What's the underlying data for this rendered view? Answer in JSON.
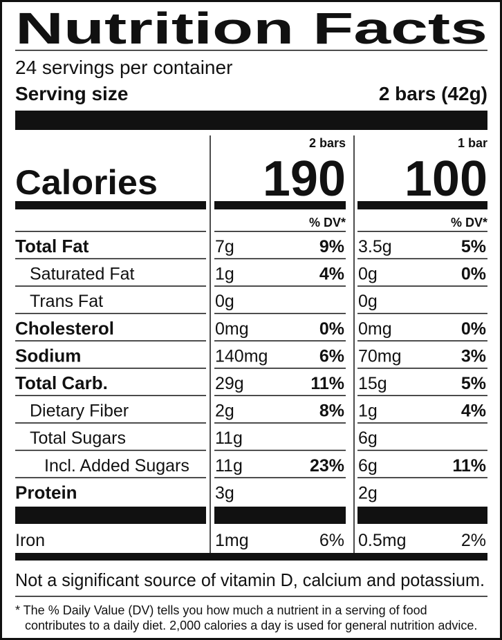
{
  "header": {
    "title": "Nutrition Facts",
    "servings": "24 servings per container",
    "serving_size_label": "Serving size",
    "serving_size": "2 bars (42g)"
  },
  "calories_label": "Calories",
  "columns": [
    {
      "label": "2 bars",
      "calories": "190",
      "dv_header": "% DV*"
    },
    {
      "label": "1 bar",
      "calories": "100",
      "dv_header": "% DV*"
    }
  ],
  "rows": [
    {
      "name": "Total Fat",
      "values": [
        {
          "amount": "7g",
          "dv": "9%"
        },
        {
          "amount": "3.5g",
          "dv": "5%"
        }
      ]
    },
    {
      "name": "Saturated Fat",
      "values": [
        {
          "amount": "1g",
          "dv": "4%"
        },
        {
          "amount": "0g",
          "dv": "0%"
        }
      ]
    },
    {
      "name": "Trans Fat",
      "values": [
        {
          "amount": "0g"
        },
        {
          "amount": "0g"
        }
      ]
    },
    {
      "name": "Cholesterol",
      "values": [
        {
          "amount": "0mg",
          "dv": "0%"
        },
        {
          "amount": "0mg",
          "dv": "0%"
        }
      ]
    },
    {
      "name": "Sodium",
      "values": [
        {
          "amount": "140mg",
          "dv": "6%"
        },
        {
          "amount": "70mg",
          "dv": "3%"
        }
      ]
    },
    {
      "name": "Total Carb.",
      "values": [
        {
          "amount": "29g",
          "dv": "11%"
        },
        {
          "amount": "15g",
          "dv": "5%"
        }
      ]
    },
    {
      "name": "Dietary Fiber",
      "values": [
        {
          "amount": "2g",
          "dv": "8%"
        },
        {
          "amount": "1g",
          "dv": "4%"
        }
      ]
    },
    {
      "name": "Total Sugars",
      "values": [
        {
          "amount": "11g"
        },
        {
          "amount": "6g"
        }
      ]
    },
    {
      "name": "Incl. Added Sugars",
      "values": [
        {
          "amount": "11g",
          "dv": "23%"
        },
        {
          "amount": "6g",
          "dv": "11%"
        }
      ]
    },
    {
      "name": "Protein",
      "values": [
        {
          "amount": "3g"
        },
        {
          "amount": "2g"
        }
      ]
    },
    {
      "name": "Iron",
      "values": [
        {
          "amount": "1mg",
          "dv": "6%"
        },
        {
          "amount": "0.5mg",
          "dv": "2%"
        }
      ]
    }
  ],
  "note": "Not a significant source of vitamin D, calcium and potassium.",
  "footnote": [
    "* The % Daily Value (DV) tells you how much a nutrient in a serving of food",
    "contributes to a daily diet. 2,000 calories a day is used for general nutrition advice."
  ]
}
